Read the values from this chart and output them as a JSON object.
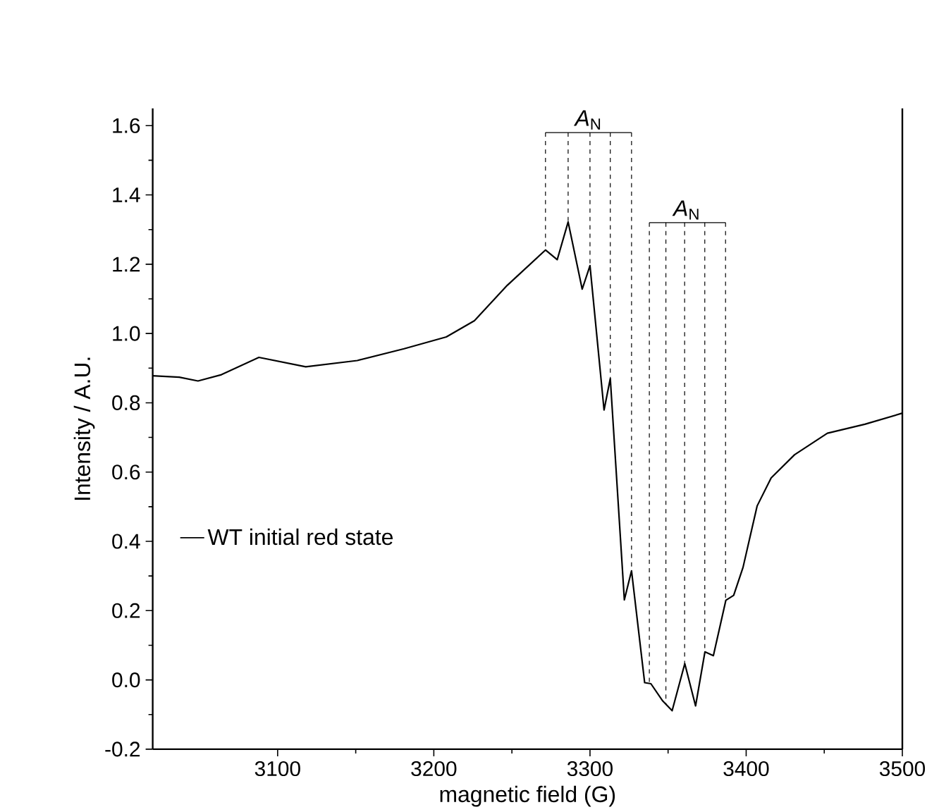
{
  "chart_data": {
    "type": "line",
    "xlabel": "magnetic field (G)",
    "ylabel": "Intensity / A.U.",
    "xlim": [
      3020,
      3500
    ],
    "ylim": [
      -0.2,
      1.65
    ],
    "xticks": [
      3100,
      3200,
      3300,
      3400,
      3500
    ],
    "yticks": [
      -0.2,
      {
        "value": 0,
        "label": "0.0"
      },
      0.2,
      0.4,
      0.6,
      0.8,
      {
        "value": 1,
        "label": "1.0"
      },
      1.2,
      1.4,
      1.6
    ],
    "series": [
      {
        "name": "WT initial red state",
        "color": "#000000",
        "x": [
          3020,
          3037,
          3049,
          3064,
          3088,
          3118,
          3151,
          3181,
          3208,
          3226,
          3247,
          3271.5,
          3279,
          3286,
          3295,
          3300,
          3309,
          3313,
          3322,
          3326.6,
          3335,
          3339,
          3346.6,
          3352.6,
          3360.7,
          3367.6,
          3373.6,
          3379,
          3387,
          3392,
          3398,
          3407,
          3416,
          3431,
          3452,
          3476,
          3500
        ],
        "values": [
          0.878,
          0.874,
          0.863,
          0.881,
          0.931,
          0.904,
          0.922,
          0.956,
          0.99,
          1.037,
          1.139,
          1.241,
          1.213,
          1.322,
          1.128,
          1.196,
          0.779,
          0.87,
          0.231,
          0.315,
          -0.008,
          -0.011,
          -0.061,
          -0.089,
          0.047,
          -0.075,
          0.081,
          0.07,
          0.23,
          0.244,
          0.325,
          0.502,
          0.583,
          0.65,
          0.712,
          0.738,
          0.77
        ]
      }
    ],
    "annotations": [
      {
        "text": "*A*$_{N}$",
        "x": 3299,
        "y": 1.58
      },
      {
        "text": "*A*$_{N}$",
        "x": 3362,
        "y": 1.32
      }
    ],
    "ref_lines": [
      {
        "axis": "x",
        "value": 3271.5,
        "line_style": "dashed"
      },
      {
        "axis": "x",
        "value": 3286,
        "line_style": "dashed"
      },
      {
        "axis": "x",
        "value": 3300,
        "line_style": "dashed"
      },
      {
        "axis": "x",
        "value": 3313,
        "line_style": "dashed"
      },
      {
        "axis": "x",
        "value": 3326.6,
        "line_style": "dashed"
      },
      {
        "axis": "x",
        "value": 3338,
        "line_style": "dashed"
      },
      {
        "axis": "x",
        "value": 3348.6,
        "line_style": "dashed"
      },
      {
        "axis": "x",
        "value": 3360.6,
        "line_style": "dashed"
      },
      {
        "axis": "x",
        "value": 3373.5,
        "line_style": "dashed"
      },
      {
        "axis": "x",
        "value": 3386.8,
        "line_style": "dashed"
      }
    ],
    "legend": "left"
  }
}
